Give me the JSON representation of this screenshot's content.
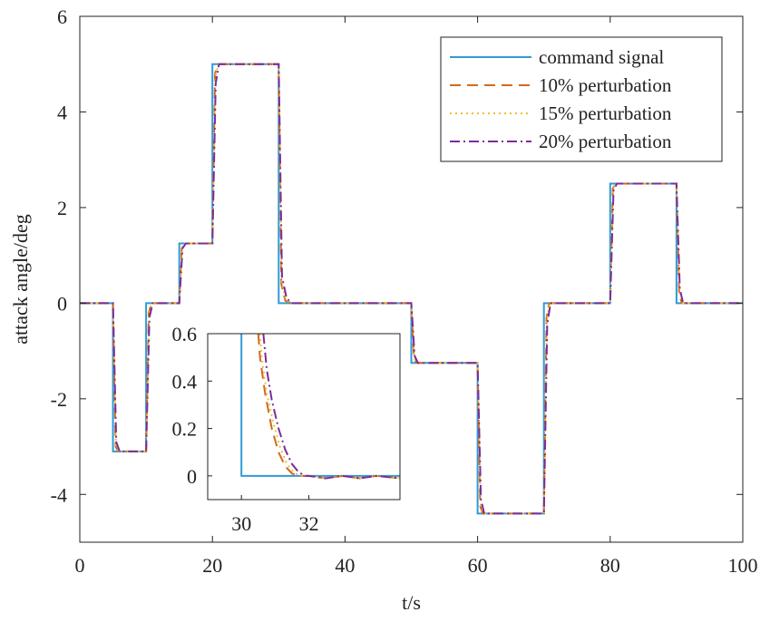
{
  "chart_data": [
    {
      "type": "line",
      "title": "",
      "xlabel": "t/s",
      "ylabel": "attack angle/deg",
      "xlim": [
        0,
        100
      ],
      "ylim": [
        -5,
        6
      ],
      "xticks": [
        0,
        20,
        40,
        60,
        80,
        100
      ],
      "yticks": [
        -4,
        -2,
        0,
        2,
        4,
        6
      ],
      "grid": false,
      "legend_position": "top-right",
      "series": [
        {
          "name": "command signal",
          "color": "#2f9bd6",
          "dash": "solid",
          "points": [
            [
              0,
              0
            ],
            [
              5,
              0
            ],
            [
              5,
              -3.1
            ],
            [
              10,
              -3.1
            ],
            [
              10,
              0
            ],
            [
              15,
              0
            ],
            [
              15,
              1.25
            ],
            [
              20,
              1.25
            ],
            [
              20,
              5
            ],
            [
              30,
              5
            ],
            [
              30,
              0
            ],
            [
              50,
              0
            ],
            [
              50,
              -1.25
            ],
            [
              60,
              -1.25
            ],
            [
              60,
              -4.4
            ],
            [
              70,
              -4.4
            ],
            [
              70,
              0
            ],
            [
              80,
              0
            ],
            [
              80,
              2.5
            ],
            [
              90,
              2.5
            ],
            [
              90,
              0
            ],
            [
              100,
              0
            ]
          ]
        },
        {
          "name": "10% perturbation",
          "color": "#d2691e",
          "dash": "dashed",
          "points": [
            [
              0,
              0
            ],
            [
              5,
              0
            ],
            [
              5.4,
              -3.0
            ],
            [
              5.8,
              -3.1
            ],
            [
              10,
              -3.1
            ],
            [
              10.4,
              -0.2
            ],
            [
              10.8,
              0
            ],
            [
              15,
              0
            ],
            [
              15.4,
              1.2
            ],
            [
              15.8,
              1.25
            ],
            [
              20,
              1.25
            ],
            [
              20.4,
              4.8
            ],
            [
              20.8,
              5
            ],
            [
              30,
              5
            ],
            [
              30.4,
              0.4
            ],
            [
              31,
              0.05
            ],
            [
              32,
              0
            ],
            [
              50,
              0
            ],
            [
              50.4,
              -1.15
            ],
            [
              50.8,
              -1.25
            ],
            [
              60,
              -1.25
            ],
            [
              60.4,
              -4.25
            ],
            [
              60.8,
              -4.4
            ],
            [
              70,
              -4.4
            ],
            [
              70.4,
              -0.3
            ],
            [
              70.8,
              0
            ],
            [
              80,
              0
            ],
            [
              80.4,
              2.4
            ],
            [
              80.8,
              2.5
            ],
            [
              90,
              2.5
            ],
            [
              90.4,
              0.2
            ],
            [
              90.8,
              0
            ],
            [
              100,
              0
            ]
          ]
        },
        {
          "name": "15% perturbation",
          "color": "#f0c030",
          "dash": "dotted",
          "points": [
            [
              0,
              0
            ],
            [
              5,
              0
            ],
            [
              5.45,
              -3.0
            ],
            [
              5.9,
              -3.1
            ],
            [
              10,
              -3.1
            ],
            [
              10.45,
              -0.2
            ],
            [
              10.9,
              0
            ],
            [
              15,
              0
            ],
            [
              15.45,
              1.2
            ],
            [
              15.9,
              1.25
            ],
            [
              20,
              1.25
            ],
            [
              20.45,
              4.75
            ],
            [
              20.9,
              5
            ],
            [
              30,
              5
            ],
            [
              30.45,
              0.45
            ],
            [
              31.1,
              0.06
            ],
            [
              32,
              0
            ],
            [
              50,
              0
            ],
            [
              50.45,
              -1.15
            ],
            [
              50.9,
              -1.25
            ],
            [
              60,
              -1.25
            ],
            [
              60.45,
              -4.2
            ],
            [
              60.9,
              -4.4
            ],
            [
              70,
              -4.4
            ],
            [
              70.45,
              -0.35
            ],
            [
              70.9,
              0
            ],
            [
              80,
              0
            ],
            [
              80.45,
              2.4
            ],
            [
              80.9,
              2.5
            ],
            [
              90,
              2.5
            ],
            [
              90.45,
              0.25
            ],
            [
              90.9,
              0
            ],
            [
              100,
              0
            ]
          ]
        },
        {
          "name": "20% perturbation",
          "color": "#7a2d9a",
          "dash": "dashdot",
          "points": [
            [
              0,
              0
            ],
            [
              5,
              0
            ],
            [
              5.5,
              -2.9
            ],
            [
              6,
              -3.1
            ],
            [
              10,
              -3.1
            ],
            [
              10.5,
              -0.3
            ],
            [
              11,
              0
            ],
            [
              15,
              0
            ],
            [
              15.5,
              1.15
            ],
            [
              16,
              1.25
            ],
            [
              20,
              1.25
            ],
            [
              20.5,
              4.6
            ],
            [
              21,
              5
            ],
            [
              30,
              5
            ],
            [
              30.5,
              0.55
            ],
            [
              31.2,
              0.1
            ],
            [
              32,
              0
            ],
            [
              50,
              0
            ],
            [
              50.5,
              -1.1
            ],
            [
              51,
              -1.25
            ],
            [
              60,
              -1.25
            ],
            [
              60.5,
              -4.1
            ],
            [
              61,
              -4.4
            ],
            [
              70,
              -4.4
            ],
            [
              70.5,
              -0.45
            ],
            [
              71,
              0
            ],
            [
              80,
              0
            ],
            [
              80.5,
              2.35
            ],
            [
              81,
              2.5
            ],
            [
              90,
              2.5
            ],
            [
              90.5,
              0.3
            ],
            [
              91,
              0
            ],
            [
              100,
              0
            ]
          ]
        }
      ]
    },
    {
      "type": "line",
      "title": "",
      "xlabel": "",
      "ylabel": "",
      "xlim": [
        29,
        34.7
      ],
      "ylim": [
        -0.1,
        0.6
      ],
      "xticks": [
        30,
        32
      ],
      "yticks": [
        0,
        0.2,
        0.4,
        0.6
      ],
      "ytick_labels": [
        "0",
        "0.2",
        "0.4",
        "0.6"
      ],
      "grid": false,
      "series": [
        {
          "name": "command signal",
          "color": "#2f9bd6",
          "dash": "solid",
          "points": [
            [
              30,
              0.6
            ],
            [
              30,
              0
            ],
            [
              34.7,
              0
            ]
          ]
        },
        {
          "name": "10% perturbation",
          "color": "#d2691e",
          "dash": "dashed",
          "points": [
            [
              30.5,
              0.6
            ],
            [
              30.55,
              0.5
            ],
            [
              30.7,
              0.35
            ],
            [
              30.9,
              0.2
            ],
            [
              31.1,
              0.1
            ],
            [
              31.3,
              0.04
            ],
            [
              31.5,
              0.01
            ],
            [
              31.7,
              0
            ],
            [
              32,
              0
            ],
            [
              32.5,
              -0.01
            ],
            [
              33,
              0
            ],
            [
              33.5,
              -0.01
            ],
            [
              34,
              0
            ],
            [
              34.7,
              -0.01
            ]
          ]
        },
        {
          "name": "15% perturbation",
          "color": "#f0c030",
          "dash": "dotted",
          "points": [
            [
              30.55,
              0.6
            ],
            [
              30.6,
              0.5
            ],
            [
              30.75,
              0.35
            ],
            [
              30.95,
              0.22
            ],
            [
              31.15,
              0.12
            ],
            [
              31.35,
              0.05
            ],
            [
              31.55,
              0.015
            ],
            [
              31.75,
              0
            ],
            [
              32,
              0
            ],
            [
              32.5,
              -0.01
            ],
            [
              33,
              0
            ],
            [
              33.5,
              -0.01
            ],
            [
              34,
              0
            ],
            [
              34.7,
              -0.01
            ]
          ]
        },
        {
          "name": "20% perturbation",
          "color": "#7a2d9a",
          "dash": "dashdot",
          "points": [
            [
              30.65,
              0.6
            ],
            [
              30.75,
              0.45
            ],
            [
              30.9,
              0.32
            ],
            [
              31.1,
              0.2
            ],
            [
              31.3,
              0.11
            ],
            [
              31.5,
              0.05
            ],
            [
              31.7,
              0.015
            ],
            [
              31.9,
              0
            ],
            [
              32,
              0
            ],
            [
              32.5,
              -0.01
            ],
            [
              33,
              0
            ],
            [
              33.5,
              -0.01
            ],
            [
              34,
              0
            ],
            [
              34.7,
              -0.01
            ]
          ]
        }
      ]
    }
  ]
}
